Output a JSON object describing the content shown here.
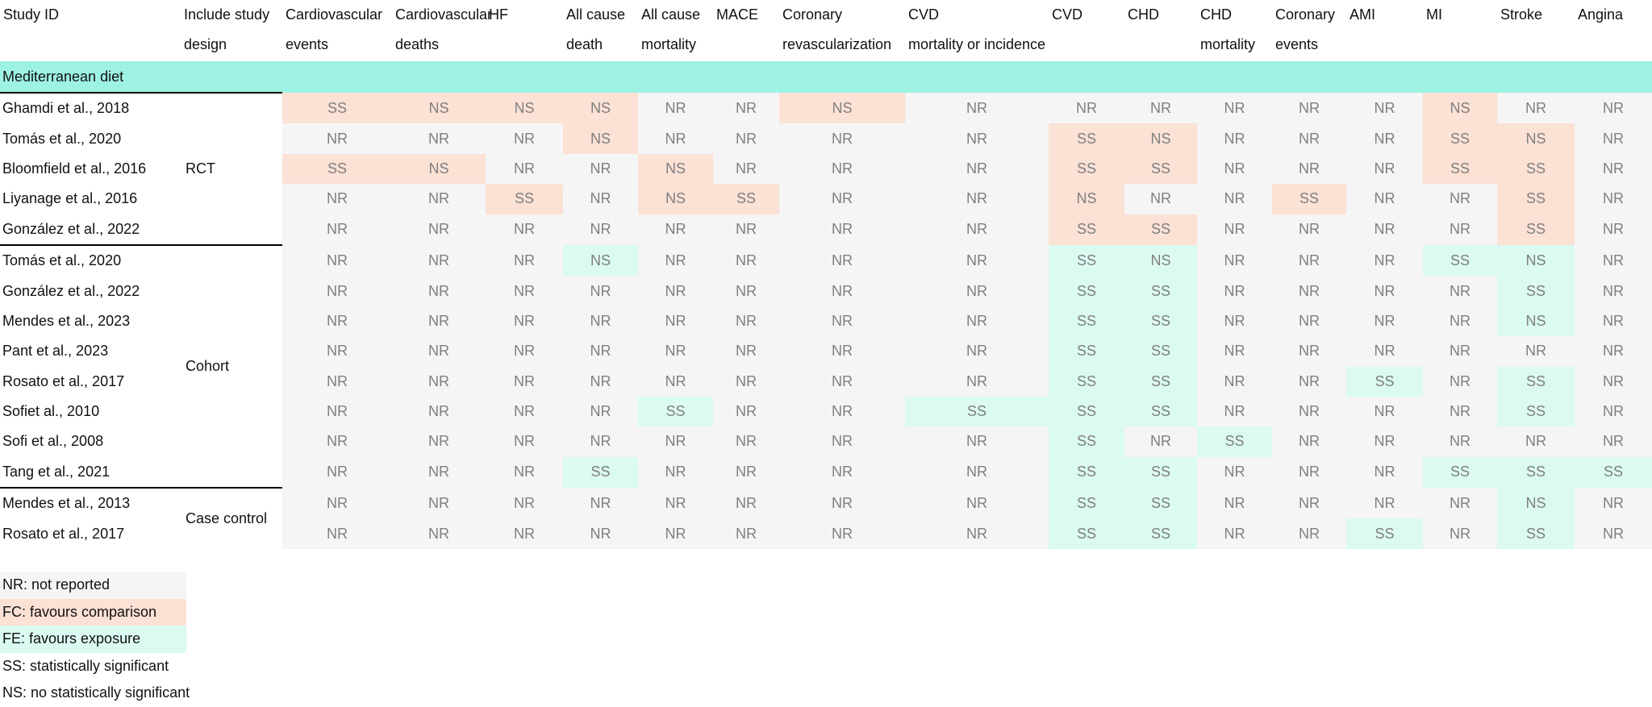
{
  "headers": [
    [
      "Study ID"
    ],
    [
      "Include study",
      "design"
    ],
    [
      "Cardiovascular",
      "events"
    ],
    [
      "Cardiovascular",
      "deaths"
    ],
    [
      "HF"
    ],
    [
      "All cause",
      "death"
    ],
    [
      "All cause",
      "mortality"
    ],
    [
      "MACE"
    ],
    [
      "Coronary",
      "revascularization"
    ],
    [
      "CVD",
      "mortality or incidence"
    ],
    [
      "CVD"
    ],
    [
      "CHD"
    ],
    [
      "CHD",
      "mortality"
    ],
    [
      "Coronary",
      "events"
    ],
    [
      "AMI"
    ],
    [
      "MI"
    ],
    [
      "Stroke"
    ],
    [
      "Angina"
    ]
  ],
  "section_label": "Mediterranean diet",
  "groups": [
    {
      "design": "RCT",
      "rows": [
        {
          "study": "Ghamdi et al., 2018",
          "cells": [
            [
              "SS",
              "FC"
            ],
            [
              "NS",
              "FC"
            ],
            [
              "NS",
              "FC"
            ],
            [
              "NS",
              "FC"
            ],
            [
              "NR",
              "NR"
            ],
            [
              "NR",
              "NR"
            ],
            [
              "NS",
              "FC"
            ],
            [
              "NR",
              "NR"
            ],
            [
              "NR",
              "NR"
            ],
            [
              "NR",
              "NR"
            ],
            [
              "NR",
              "NR"
            ],
            [
              "NR",
              "NR"
            ],
            [
              "NR",
              "NR"
            ],
            [
              "NS",
              "FC"
            ],
            [
              "NR",
              "NR"
            ],
            [
              "NR",
              "NR"
            ]
          ]
        },
        {
          "study": "Tomás et al., 2020",
          "cells": [
            [
              "NR",
              "NR"
            ],
            [
              "NR",
              "NR"
            ],
            [
              "NR",
              "NR"
            ],
            [
              "NS",
              "FC"
            ],
            [
              "NR",
              "NR"
            ],
            [
              "NR",
              "NR"
            ],
            [
              "NR",
              "NR"
            ],
            [
              "NR",
              "NR"
            ],
            [
              "SS",
              "FC"
            ],
            [
              "NS",
              "FC"
            ],
            [
              "NR",
              "NR"
            ],
            [
              "NR",
              "NR"
            ],
            [
              "NR",
              "NR"
            ],
            [
              "SS",
              "FC"
            ],
            [
              "NS",
              "FC"
            ],
            [
              "NR",
              "NR"
            ]
          ]
        },
        {
          "study": "Bloomfield et al., 2016",
          "cells": [
            [
              "SS",
              "FC"
            ],
            [
              "NS",
              "FC"
            ],
            [
              "NR",
              "NR"
            ],
            [
              "NR",
              "NR"
            ],
            [
              "NS",
              "FC"
            ],
            [
              "NR",
              "NR"
            ],
            [
              "NR",
              "NR"
            ],
            [
              "NR",
              "NR"
            ],
            [
              "SS",
              "FC"
            ],
            [
              "SS",
              "FC"
            ],
            [
              "NR",
              "NR"
            ],
            [
              "NR",
              "NR"
            ],
            [
              "NR",
              "NR"
            ],
            [
              "SS",
              "FC"
            ],
            [
              "SS",
              "FC"
            ],
            [
              "NR",
              "NR"
            ]
          ]
        },
        {
          "study": "Liyanage et al., 2016",
          "cells": [
            [
              "NR",
              "NR"
            ],
            [
              "NR",
              "NR"
            ],
            [
              "SS",
              "FC"
            ],
            [
              "NR",
              "NR"
            ],
            [
              "NS",
              "FC"
            ],
            [
              "SS",
              "FC"
            ],
            [
              "NR",
              "NR"
            ],
            [
              "NR",
              "NR"
            ],
            [
              "NS",
              "FC"
            ],
            [
              "NR",
              "NR"
            ],
            [
              "NR",
              "NR"
            ],
            [
              "SS",
              "FC"
            ],
            [
              "NR",
              "NR"
            ],
            [
              "NR",
              "NR"
            ],
            [
              "SS",
              "FC"
            ],
            [
              "NR",
              "NR"
            ]
          ]
        },
        {
          "study": "González et al., 2022",
          "cells": [
            [
              "NR",
              "NR"
            ],
            [
              "NR",
              "NR"
            ],
            [
              "NR",
              "NR"
            ],
            [
              "NR",
              "NR"
            ],
            [
              "NR",
              "NR"
            ],
            [
              "NR",
              "NR"
            ],
            [
              "NR",
              "NR"
            ],
            [
              "NR",
              "NR"
            ],
            [
              "SS",
              "FC"
            ],
            [
              "SS",
              "FC"
            ],
            [
              "NR",
              "NR"
            ],
            [
              "NR",
              "NR"
            ],
            [
              "NR",
              "NR"
            ],
            [
              "NR",
              "NR"
            ],
            [
              "SS",
              "FC"
            ],
            [
              "NR",
              "NR"
            ]
          ]
        }
      ]
    },
    {
      "design": "Cohort",
      "rows": [
        {
          "study": "Tomás et al., 2020",
          "cells": [
            [
              "NR",
              "NR"
            ],
            [
              "NR",
              "NR"
            ],
            [
              "NR",
              "NR"
            ],
            [
              "NS",
              "FE"
            ],
            [
              "NR",
              "NR"
            ],
            [
              "NR",
              "NR"
            ],
            [
              "NR",
              "NR"
            ],
            [
              "NR",
              "NR"
            ],
            [
              "SS",
              "FE"
            ],
            [
              "NS",
              "FE"
            ],
            [
              "NR",
              "NR"
            ],
            [
              "NR",
              "NR"
            ],
            [
              "NR",
              "NR"
            ],
            [
              "SS",
              "FE"
            ],
            [
              "NS",
              "FE"
            ],
            [
              "NR",
              "NR"
            ]
          ]
        },
        {
          "study": "González et al., 2022",
          "cells": [
            [
              "NR",
              "NR"
            ],
            [
              "NR",
              "NR"
            ],
            [
              "NR",
              "NR"
            ],
            [
              "NR",
              "NR"
            ],
            [
              "NR",
              "NR"
            ],
            [
              "NR",
              "NR"
            ],
            [
              "NR",
              "NR"
            ],
            [
              "NR",
              "NR"
            ],
            [
              "SS",
              "FE"
            ],
            [
              "SS",
              "FE"
            ],
            [
              "NR",
              "NR"
            ],
            [
              "NR",
              "NR"
            ],
            [
              "NR",
              "NR"
            ],
            [
              "NR",
              "NR"
            ],
            [
              "SS",
              "FE"
            ],
            [
              "NR",
              "NR"
            ]
          ]
        },
        {
          "study": "Mendes et al., 2023",
          "cells": [
            [
              "NR",
              "NR"
            ],
            [
              "NR",
              "NR"
            ],
            [
              "NR",
              "NR"
            ],
            [
              "NR",
              "NR"
            ],
            [
              "NR",
              "NR"
            ],
            [
              "NR",
              "NR"
            ],
            [
              "NR",
              "NR"
            ],
            [
              "NR",
              "NR"
            ],
            [
              "SS",
              "FE"
            ],
            [
              "SS",
              "FE"
            ],
            [
              "NR",
              "NR"
            ],
            [
              "NR",
              "NR"
            ],
            [
              "NR",
              "NR"
            ],
            [
              "NR",
              "NR"
            ],
            [
              "NS",
              "FE"
            ],
            [
              "NR",
              "NR"
            ]
          ]
        },
        {
          "study": "Pant et al., 2023",
          "cells": [
            [
              "NR",
              "NR"
            ],
            [
              "NR",
              "NR"
            ],
            [
              "NR",
              "NR"
            ],
            [
              "NR",
              "NR"
            ],
            [
              "NR",
              "NR"
            ],
            [
              "NR",
              "NR"
            ],
            [
              "NR",
              "NR"
            ],
            [
              "NR",
              "NR"
            ],
            [
              "SS",
              "FE"
            ],
            [
              "SS",
              "FE"
            ],
            [
              "NR",
              "NR"
            ],
            [
              "NR",
              "NR"
            ],
            [
              "NR",
              "NR"
            ],
            [
              "NR",
              "NR"
            ],
            [
              "NR",
              "NR"
            ],
            [
              "NR",
              "NR"
            ]
          ]
        },
        {
          "study": "Rosato et al., 2017",
          "cells": [
            [
              "NR",
              "NR"
            ],
            [
              "NR",
              "NR"
            ],
            [
              "NR",
              "NR"
            ],
            [
              "NR",
              "NR"
            ],
            [
              "NR",
              "NR"
            ],
            [
              "NR",
              "NR"
            ],
            [
              "NR",
              "NR"
            ],
            [
              "NR",
              "NR"
            ],
            [
              "SS",
              "FE"
            ],
            [
              "SS",
              "FE"
            ],
            [
              "NR",
              "NR"
            ],
            [
              "NR",
              "NR"
            ],
            [
              "SS",
              "FE"
            ],
            [
              "NR",
              "NR"
            ],
            [
              "SS",
              "FE"
            ],
            [
              "NR",
              "NR"
            ]
          ]
        },
        {
          "study": "Sofiet al., 2010",
          "cells": [
            [
              "NR",
              "NR"
            ],
            [
              "NR",
              "NR"
            ],
            [
              "NR",
              "NR"
            ],
            [
              "NR",
              "NR"
            ],
            [
              "SS",
              "FE"
            ],
            [
              "NR",
              "NR"
            ],
            [
              "NR",
              "NR"
            ],
            [
              "SS",
              "FE"
            ],
            [
              "SS",
              "FE"
            ],
            [
              "SS",
              "FE"
            ],
            [
              "NR",
              "NR"
            ],
            [
              "NR",
              "NR"
            ],
            [
              "NR",
              "NR"
            ],
            [
              "NR",
              "NR"
            ],
            [
              "SS",
              "FE"
            ],
            [
              "NR",
              "NR"
            ]
          ]
        },
        {
          "study": "Sofi et al., 2008",
          "cells": [
            [
              "NR",
              "NR"
            ],
            [
              "NR",
              "NR"
            ],
            [
              "NR",
              "NR"
            ],
            [
              "NR",
              "NR"
            ],
            [
              "NR",
              "NR"
            ],
            [
              "NR",
              "NR"
            ],
            [
              "NR",
              "NR"
            ],
            [
              "NR",
              "NR"
            ],
            [
              "SS",
              "FE"
            ],
            [
              "NR",
              "NR"
            ],
            [
              "SS",
              "FE"
            ],
            [
              "NR",
              "NR"
            ],
            [
              "NR",
              "NR"
            ],
            [
              "NR",
              "NR"
            ],
            [
              "NR",
              "NR"
            ],
            [
              "NR",
              "NR"
            ]
          ]
        },
        {
          "study": "Tang et al., 2021",
          "cells": [
            [
              "NR",
              "NR"
            ],
            [
              "NR",
              "NR"
            ],
            [
              "NR",
              "NR"
            ],
            [
              "SS",
              "FE"
            ],
            [
              "NR",
              "NR"
            ],
            [
              "NR",
              "NR"
            ],
            [
              "NR",
              "NR"
            ],
            [
              "NR",
              "NR"
            ],
            [
              "SS",
              "FE"
            ],
            [
              "SS",
              "FE"
            ],
            [
              "NR",
              "NR"
            ],
            [
              "NR",
              "NR"
            ],
            [
              "NR",
              "NR"
            ],
            [
              "SS",
              "FE"
            ],
            [
              "SS",
              "FE"
            ],
            [
              "SS",
              "FE"
            ]
          ]
        }
      ]
    },
    {
      "design": "Case control",
      "rows": [
        {
          "study": "Mendes et al., 2013",
          "cells": [
            [
              "NR",
              "NR"
            ],
            [
              "NR",
              "NR"
            ],
            [
              "NR",
              "NR"
            ],
            [
              "NR",
              "NR"
            ],
            [
              "NR",
              "NR"
            ],
            [
              "NR",
              "NR"
            ],
            [
              "NR",
              "NR"
            ],
            [
              "NR",
              "NR"
            ],
            [
              "SS",
              "FE"
            ],
            [
              "SS",
              "FE"
            ],
            [
              "NR",
              "NR"
            ],
            [
              "NR",
              "NR"
            ],
            [
              "NR",
              "NR"
            ],
            [
              "NR",
              "NR"
            ],
            [
              "NS",
              "FE"
            ],
            [
              "NR",
              "NR"
            ]
          ]
        },
        {
          "study": "Rosato et al., 2017",
          "cells": [
            [
              "NR",
              "NR"
            ],
            [
              "NR",
              "NR"
            ],
            [
              "NR",
              "NR"
            ],
            [
              "NR",
              "NR"
            ],
            [
              "NR",
              "NR"
            ],
            [
              "NR",
              "NR"
            ],
            [
              "NR",
              "NR"
            ],
            [
              "NR",
              "NR"
            ],
            [
              "SS",
              "FE"
            ],
            [
              "SS",
              "FE"
            ],
            [
              "NR",
              "NR"
            ],
            [
              "NR",
              "NR"
            ],
            [
              "SS",
              "FE"
            ],
            [
              "NR",
              "NR"
            ],
            [
              "SS",
              "FE"
            ],
            [
              "NR",
              "NR"
            ]
          ]
        }
      ]
    }
  ],
  "legend": [
    {
      "text": "NR: not reported",
      "swatch": "#f5f5f5"
    },
    {
      "text": "FC: favours comparison",
      "swatch": "#fce1d5"
    },
    {
      "text": "FE: favours exposure",
      "swatch": "#dbfaf2"
    },
    {
      "text": "SS: statistically significant",
      "swatch": null
    },
    {
      "text": "NS: no statistically significant",
      "swatch": null
    }
  ],
  "colors": {
    "NR": "#f5f5f5",
    "FC": "#fce1d5",
    "FE": "#dbfaf2",
    "section": "#9ef2e3"
  }
}
